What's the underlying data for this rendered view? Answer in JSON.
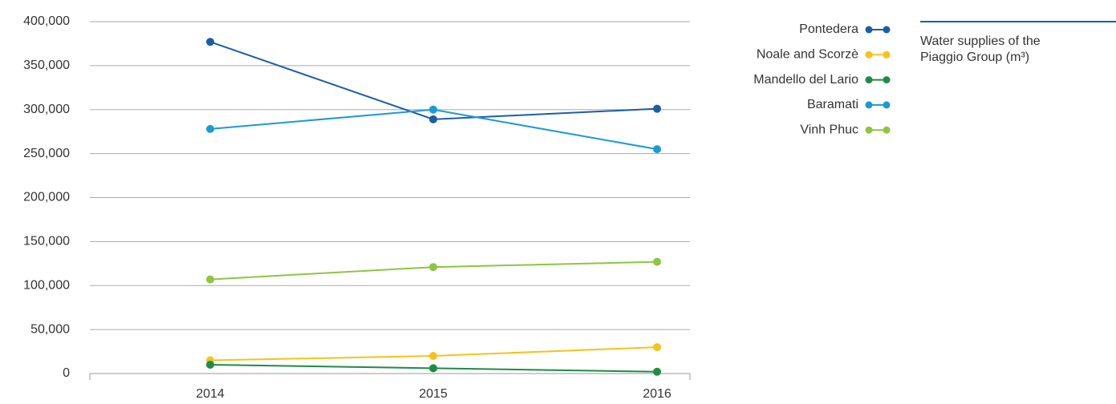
{
  "chart_data": {
    "type": "line",
    "categories": [
      "2014",
      "2015",
      "2016"
    ],
    "series": [
      {
        "name": "Pontedera",
        "color": "#1a5ea8",
        "values": [
          377000,
          289000,
          301000
        ]
      },
      {
        "name": "Noale and Scorzè",
        "color": "#f5c319",
        "values": [
          15000,
          20000,
          30000
        ]
      },
      {
        "name": "Mandello del Lario",
        "color": "#1e8c45",
        "values": [
          10000,
          6000,
          2000
        ]
      },
      {
        "name": "Baramati",
        "color": "#1a9ad6",
        "values": [
          278000,
          300000,
          255000
        ]
      },
      {
        "name": "Vinh Phuc",
        "color": "#8cc63f",
        "values": [
          107000,
          121000,
          127000
        ]
      }
    ],
    "ylim": [
      0,
      400000
    ],
    "yticks": [
      0,
      {
        "value": 50000,
        "label": "50,000"
      },
      {
        "value": 100000,
        "label": "100,000"
      },
      {
        "value": 150000,
        "label": "150,000"
      },
      {
        "value": 200000,
        "label": "200,000"
      },
      {
        "value": 250000,
        "label": "250,000"
      },
      {
        "value": 300000,
        "label": "300,000"
      },
      {
        "value": 350000,
        "label": "350,000"
      },
      {
        "value": 400000,
        "label": "400,000"
      }
    ],
    "grid": true,
    "legend_position": "right",
    "note": [
      "Water supplies of the",
      "Piaggio Group (m³)"
    ]
  }
}
